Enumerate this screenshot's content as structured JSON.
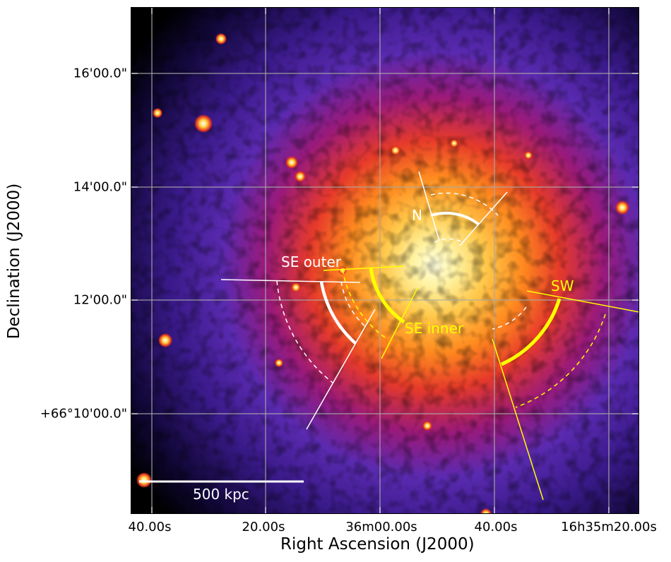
{
  "axes": {
    "xlabel": "Right Ascension (J2000)",
    "ylabel": "Declination (J2000)",
    "x_ticks": [
      "40.00s",
      "20.00s",
      "36m00.00s",
      "40.00s",
      "16h35m20.00s"
    ],
    "y_ticks": [
      "16'00.0\"",
      "14'00.0\"",
      "12'00.0\"",
      "+66°10'00.0\""
    ]
  },
  "annotations": {
    "se_outer": "SE outer",
    "se_inner": "SE inner",
    "north": "N",
    "southwest": "SW",
    "scale_bar": "500 kpc"
  },
  "colors": {
    "white_region": "#ffffff",
    "yellow_region": "#ffff00",
    "background": "#000000",
    "grid": "#aaaaaa"
  }
}
